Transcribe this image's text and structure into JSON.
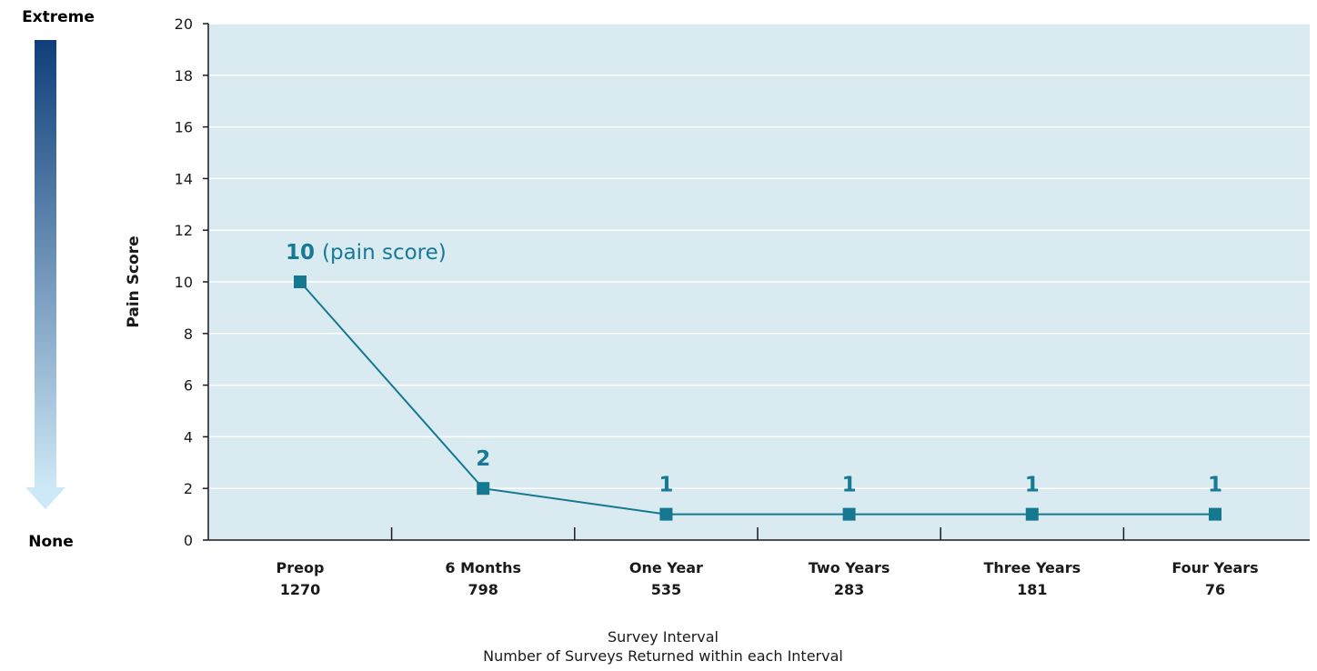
{
  "chart_data": {
    "type": "line",
    "categories": [
      "Preop",
      "6 Months",
      "One Year",
      "Two Years",
      "Three Years",
      "Four Years"
    ],
    "category_counts": [
      "1270",
      "798",
      "535",
      "283",
      "181",
      "76"
    ],
    "values": [
      10,
      2,
      1,
      1,
      1,
      1
    ],
    "data_labels": [
      "10",
      "2",
      "1",
      "1",
      "1",
      "1"
    ],
    "first_label_suffix": "(pain score)",
    "ylabel": "Pain Score",
    "xlabel": "Survey Interval",
    "xlabel_sub": "Number of Surveys Returned within each Interval",
    "ylim": [
      0,
      20
    ],
    "yticks": [
      0,
      2,
      4,
      6,
      8,
      10,
      12,
      14,
      16,
      18,
      20
    ],
    "grid": true,
    "scale_top_label": "Extreme",
    "scale_bottom_label": "None",
    "colors": {
      "plot_background": "#d9eaf1",
      "line": "#157891",
      "marker": "#157891",
      "data_label": "#167a96",
      "scale_top": "#0f3e7a",
      "scale_bottom": "#cde8f6"
    }
  }
}
